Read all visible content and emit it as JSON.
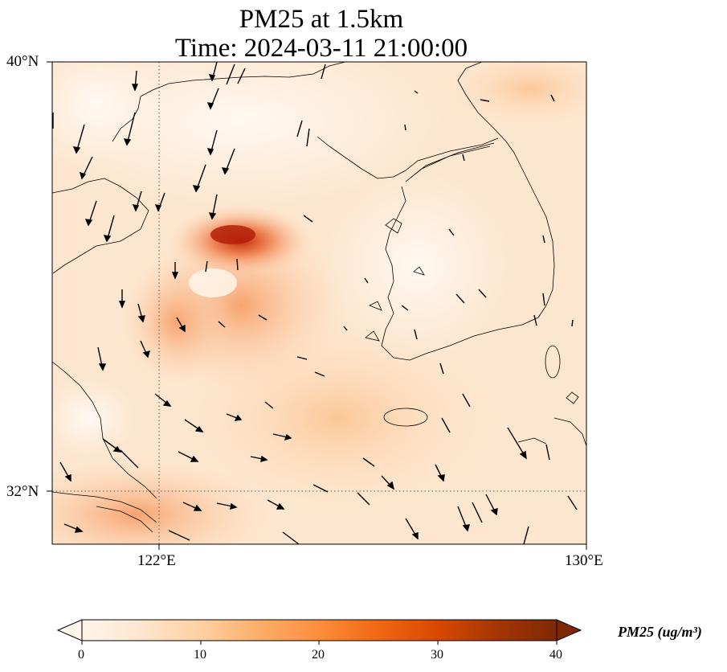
{
  "title": {
    "line1": "PM25 at 1.5km",
    "line2": "Time: 2024-03-11 21:00:00"
  },
  "axes": {
    "lat_ticks": [
      "40°N",
      "32°N"
    ],
    "lon_ticks": [
      "122°E",
      "130°E"
    ],
    "lat_range": [
      31,
      40
    ],
    "lon_range": [
      120,
      130
    ],
    "gridlines": "dotted"
  },
  "colorbar": {
    "label": "PM25 (ug/m³)",
    "ticks": [
      "0",
      "10",
      "20",
      "30",
      "40"
    ],
    "range": [
      0,
      40
    ],
    "colormap": [
      "#fff5eb",
      "#fee6ce",
      "#fdd0a2",
      "#fdae6b",
      "#fd8d3c",
      "#f16913",
      "#d94801",
      "#a63603",
      "#7f2704"
    ],
    "extend": "both"
  },
  "map": {
    "coastline_color": "#000000",
    "wind_arrow_color": "#000000"
  }
}
